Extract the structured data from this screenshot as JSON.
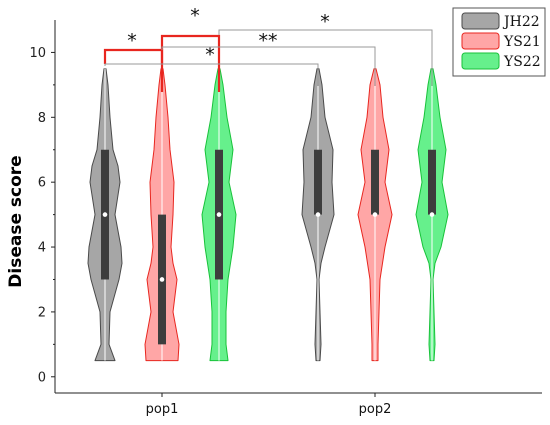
{
  "chart_data": {
    "type": "violin",
    "title": "",
    "xlabel": "",
    "ylabel": "Disease  score",
    "ylim": [
      -0.5,
      11
    ],
    "yticks": [
      "0",
      "2",
      "4",
      "6",
      "8",
      "10"
    ],
    "categories": [
      "pop1",
      "pop2"
    ],
    "legend": {
      "placement": "top-right",
      "entries": [
        "JH22",
        "YS21",
        "YS22"
      ]
    },
    "colors": {
      "JH22": {
        "fill": "#a6a6a6",
        "edge": "#4a4a4a"
      },
      "YS21": {
        "fill": "#ffa6a6",
        "edge": "#e8261f"
      },
      "YS22": {
        "fill": "#66f08c",
        "edge": "#18c23a"
      }
    },
    "series": [
      {
        "name": "JH22",
        "groups": [
          {
            "category": "pop1",
            "min": 0.5,
            "q1": 3,
            "median": 5,
            "q3": 7,
            "max": 9.5
          },
          {
            "category": "pop2",
            "min": 0.5,
            "q1": 5,
            "median": 5,
            "q3": 7,
            "max": 9.5
          }
        ]
      },
      {
        "name": "YS21",
        "groups": [
          {
            "category": "pop1",
            "min": 0.5,
            "q1": 1,
            "median": 3,
            "q3": 5,
            "max": 9.5
          },
          {
            "category": "pop2",
            "min": 0.5,
            "q1": 5,
            "median": 5,
            "q3": 7,
            "max": 9.5
          }
        ]
      },
      {
        "name": "YS22",
        "groups": [
          {
            "category": "pop1",
            "min": 0.5,
            "q1": 3,
            "median": 5,
            "q3": 7,
            "max": 9.5
          },
          {
            "category": "pop2",
            "min": 0.5,
            "q1": 5,
            "median": 5,
            "q3": 7,
            "max": 9.5
          }
        ]
      }
    ],
    "significance": [
      {
        "label": "*",
        "from": "JH22 pop1",
        "to": "YS21 pop1"
      },
      {
        "label": "*",
        "from": "YS21 pop1",
        "to": "YS22 pop1"
      },
      {
        "label": "*",
        "from": "JH22 pop1",
        "to": "JH22 pop2"
      },
      {
        "label": "**",
        "from": "YS21 pop1",
        "to": "YS21 pop2"
      },
      {
        "label": "*",
        "from": "YS22 pop1",
        "to": "YS22 pop2"
      }
    ]
  }
}
